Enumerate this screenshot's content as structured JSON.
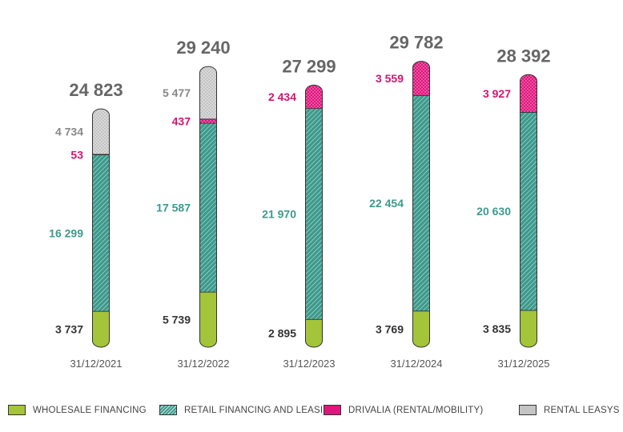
{
  "chart_data": {
    "type": "bar",
    "stacked": true,
    "categories": [
      "31/12/2021",
      "31/12/2022",
      "31/12/2023",
      "31/12/2024",
      "31/12/2025"
    ],
    "totals": [
      "24 823",
      "29 240",
      "27 299",
      "29 782",
      "28 392"
    ],
    "series": [
      {
        "name": "WHOLESALE FINANCING",
        "values": [
          3737,
          5739,
          2895,
          3769,
          3835
        ],
        "labels": [
          "3 737",
          "5 739",
          "2 895",
          "3 769",
          "3 835"
        ],
        "color": "#a4c439",
        "label_color": "#333333"
      },
      {
        "name": "RETAIL FINANCING AND LEASING",
        "values": [
          16299,
          17587,
          21970,
          22454,
          20630
        ],
        "labels": [
          "16 299",
          "17 587",
          "21 970",
          "22 454",
          "20 630"
        ],
        "color": "#3d9a8c",
        "label_color": "#3d9a8c"
      },
      {
        "name": "DRIVALIA (RENTAL/MOBILITY)",
        "values": [
          53,
          437,
          2434,
          3559,
          3927
        ],
        "labels": [
          "53",
          "437",
          "2 434",
          "3 559",
          "3 927"
        ],
        "color": "#e0157e",
        "label_color": "#d4146f"
      },
      {
        "name": "RENTAL LEASYS",
        "values": [
          4734,
          5477,
          0,
          0,
          0
        ],
        "labels": [
          "4 734",
          "5 477",
          "",
          "",
          ""
        ],
        "color": "#bdbdbd",
        "label_color": "#888888"
      }
    ],
    "ylim": [
      0,
      30000
    ],
    "grid": false,
    "legend_position": "bottom"
  }
}
